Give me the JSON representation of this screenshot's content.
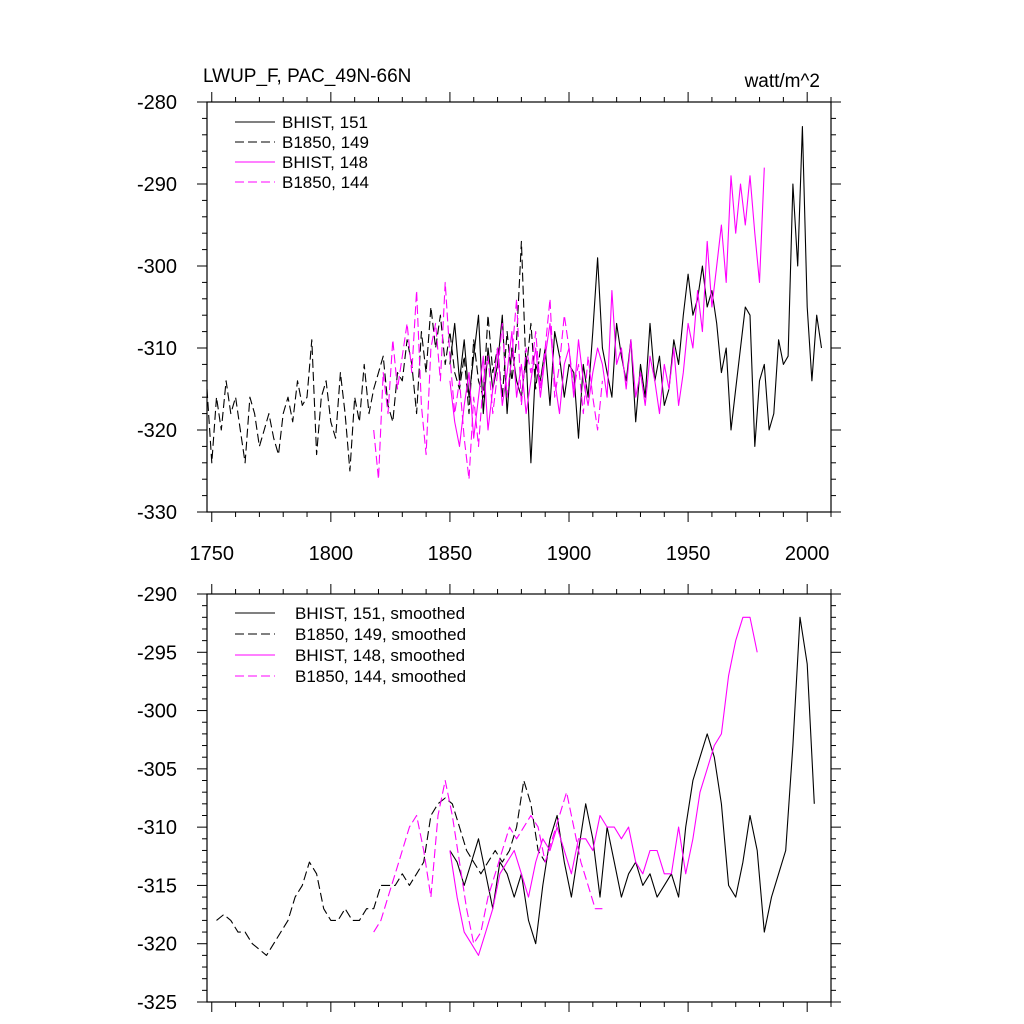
{
  "header": {
    "left_title": "LWUP_F, PAC_49N-66N",
    "right_title": "watt/m^2"
  },
  "colors": {
    "black": "#000000",
    "magenta": "#ff00ff"
  },
  "chart_data": [
    {
      "type": "line",
      "title": "LWUP_F, PAC_49N-66N",
      "units": "watt/m^2",
      "xlim": [
        1748,
        2010
      ],
      "ylim": [
        -330,
        -280
      ],
      "x_ticks": [
        1750,
        1800,
        1850,
        1900,
        1950,
        2000
      ],
      "y_ticks": [
        -330,
        -320,
        -310,
        -300,
        -290,
        -280
      ],
      "grid": false,
      "legend_position": "top-left",
      "series": [
        {
          "name": "BHIST, 151",
          "color": "#000000",
          "dash": "solid",
          "x": [
            1850,
            1852,
            1854,
            1856,
            1858,
            1860,
            1862,
            1864,
            1866,
            1868,
            1870,
            1872,
            1874,
            1876,
            1878,
            1880,
            1882,
            1884,
            1886,
            1888,
            1890,
            1892,
            1894,
            1896,
            1898,
            1900,
            1902,
            1904,
            1906,
            1908,
            1910,
            1912,
            1914,
            1916,
            1918,
            1920,
            1922,
            1924,
            1926,
            1928,
            1930,
            1932,
            1934,
            1936,
            1938,
            1940,
            1942,
            1944,
            1946,
            1948,
            1950,
            1952,
            1954,
            1956,
            1958,
            1960,
            1962,
            1964,
            1966,
            1968,
            1970,
            1972,
            1974,
            1976,
            1978,
            1980,
            1982,
            1984,
            1986,
            1988,
            1990,
            1992,
            1994,
            1996,
            1998,
            2000,
            2002,
            2004,
            2006
          ],
          "y": [
            -312,
            -307,
            -314,
            -309,
            -316,
            -311,
            -306,
            -318,
            -310,
            -315,
            -312,
            -306,
            -318,
            -310,
            -314,
            -316,
            -311,
            -324,
            -312,
            -314,
            -310,
            -317,
            -308,
            -311,
            -316,
            -312,
            -313,
            -321,
            -312,
            -316,
            -308,
            -299,
            -310,
            -313,
            -316,
            -307,
            -311,
            -314,
            -309,
            -319,
            -312,
            -316,
            -307,
            -314,
            -311,
            -317,
            -315,
            -309,
            -312,
            -306,
            -301,
            -306,
            -304,
            -300,
            -305,
            -303,
            -307,
            -313,
            -310,
            -320,
            -315,
            -310,
            -305,
            -306,
            -322,
            -314,
            -312,
            -320,
            -318,
            -309,
            -312,
            -311,
            -290,
            -300,
            -283,
            -305,
            -314,
            -306,
            -310
          ]
        },
        {
          "name": "B1850, 149",
          "color": "#000000",
          "dash": "dashed",
          "x": [
            1748,
            1750,
            1752,
            1754,
            1756,
            1758,
            1760,
            1762,
            1764,
            1766,
            1768,
            1770,
            1772,
            1774,
            1776,
            1778,
            1780,
            1782,
            1784,
            1786,
            1788,
            1790,
            1792,
            1794,
            1796,
            1798,
            1800,
            1802,
            1804,
            1806,
            1808,
            1810,
            1812,
            1814,
            1816,
            1818,
            1820,
            1822,
            1824,
            1826,
            1828,
            1830,
            1832,
            1834,
            1836,
            1838,
            1840,
            1842,
            1844,
            1846,
            1848,
            1850,
            1852,
            1854,
            1856,
            1858,
            1860,
            1862,
            1864,
            1866,
            1868,
            1870,
            1872,
            1874,
            1876,
            1878,
            1880,
            1882,
            1884,
            1886,
            1888
          ],
          "y": [
            -315,
            -324,
            -316,
            -320,
            -314,
            -318,
            -316,
            -320,
            -324,
            -316,
            -318,
            -322,
            -320,
            -318,
            -321,
            -323,
            -318,
            -316,
            -319,
            -314,
            -317,
            -316,
            -309,
            -323,
            -316,
            -314,
            -319,
            -321,
            -313,
            -318,
            -325,
            -316,
            -319,
            -312,
            -318,
            -315,
            -313,
            -311,
            -317,
            -319,
            -313,
            -314,
            -309,
            -312,
            -318,
            -308,
            -313,
            -305,
            -310,
            -306,
            -312,
            -308,
            -313,
            -315,
            -311,
            -318,
            -309,
            -314,
            -316,
            -306,
            -313,
            -310,
            -316,
            -308,
            -314,
            -309,
            -297,
            -313,
            -307,
            -315,
            -310
          ]
        },
        {
          "name": "BHIST, 148",
          "color": "#ff00ff",
          "dash": "solid",
          "x": [
            1850,
            1852,
            1854,
            1856,
            1858,
            1860,
            1862,
            1864,
            1866,
            1868,
            1870,
            1872,
            1874,
            1876,
            1878,
            1880,
            1882,
            1884,
            1886,
            1888,
            1890,
            1892,
            1894,
            1896,
            1898,
            1900,
            1902,
            1904,
            1906,
            1908,
            1910,
            1912,
            1914,
            1916,
            1918,
            1920,
            1922,
            1924,
            1926,
            1928,
            1930,
            1932,
            1934,
            1936,
            1938,
            1940,
            1942,
            1944,
            1946,
            1948,
            1950,
            1952,
            1954,
            1956,
            1958,
            1960,
            1962,
            1964,
            1966,
            1968,
            1970,
            1972,
            1974,
            1976,
            1978,
            1980,
            1982
          ],
          "y": [
            -314,
            -319,
            -322,
            -317,
            -313,
            -321,
            -316,
            -311,
            -320,
            -315,
            -310,
            -317,
            -313,
            -308,
            -316,
            -312,
            -318,
            -314,
            -310,
            -316,
            -311,
            -307,
            -314,
            -318,
            -312,
            -310,
            -316,
            -309,
            -314,
            -317,
            -313,
            -310,
            -312,
            -316,
            -303,
            -312,
            -310,
            -315,
            -309,
            -316,
            -313,
            -317,
            -311,
            -314,
            -318,
            -312,
            -315,
            -310,
            -317,
            -313,
            -307,
            -310,
            -303,
            -308,
            -297,
            -305,
            -300,
            -295,
            -302,
            -289,
            -296,
            -290,
            -295,
            -289,
            -296,
            -302,
            -288
          ]
        },
        {
          "name": "B1850, 144",
          "color": "#ff00ff",
          "dash": "dashed",
          "x": [
            1818,
            1820,
            1822,
            1824,
            1826,
            1828,
            1830,
            1832,
            1834,
            1836,
            1838,
            1840,
            1842,
            1844,
            1846,
            1848,
            1850,
            1852,
            1854,
            1856,
            1858,
            1860,
            1862,
            1864,
            1866,
            1868,
            1870,
            1872,
            1874,
            1876,
            1878,
            1880,
            1882,
            1884,
            1886,
            1888,
            1890,
            1892,
            1894,
            1896,
            1898,
            1900,
            1902,
            1904,
            1906,
            1908,
            1910,
            1912,
            1914
          ],
          "y": [
            -320,
            -326,
            -313,
            -318,
            -309,
            -315,
            -311,
            -307,
            -313,
            -303,
            -317,
            -323,
            -310,
            -307,
            -314,
            -302,
            -311,
            -318,
            -314,
            -321,
            -326,
            -316,
            -322,
            -314,
            -311,
            -318,
            -313,
            -307,
            -316,
            -311,
            -304,
            -317,
            -310,
            -313,
            -308,
            -315,
            -310,
            -304,
            -316,
            -312,
            -306,
            -310,
            -315,
            -312,
            -318,
            -311,
            -316,
            -320,
            -314
          ]
        }
      ]
    },
    {
      "type": "line",
      "xlim": [
        1748,
        2010
      ],
      "ylim": [
        -325,
        -290
      ],
      "x_ticks": [
        1750,
        1800,
        1850,
        1900,
        1950,
        2000
      ],
      "y_ticks": [
        -325,
        -320,
        -315,
        -310,
        -305,
        -300,
        -295,
        -290
      ],
      "grid": false,
      "legend_position": "top-left",
      "series": [
        {
          "name": "BHIST, 151, smoothed",
          "color": "#000000",
          "dash": "solid",
          "x": [
            1850,
            1853,
            1856,
            1859,
            1862,
            1865,
            1868,
            1871,
            1874,
            1877,
            1880,
            1883,
            1886,
            1889,
            1892,
            1895,
            1898,
            1901,
            1904,
            1907,
            1910,
            1913,
            1916,
            1919,
            1922,
            1925,
            1928,
            1931,
            1934,
            1937,
            1940,
            1943,
            1946,
            1949,
            1952,
            1955,
            1958,
            1961,
            1964,
            1967,
            1970,
            1973,
            1976,
            1979,
            1982,
            1985,
            1988,
            1991,
            1994,
            1997,
            2000,
            2003
          ],
          "y": [
            -312,
            -313,
            -315,
            -313,
            -311,
            -314,
            -317,
            -313,
            -314,
            -316,
            -314,
            -318,
            -320,
            -315,
            -311,
            -309,
            -313,
            -316,
            -312,
            -308,
            -311,
            -316,
            -310,
            -313,
            -316,
            -314,
            -313,
            -315,
            -314,
            -316,
            -315,
            -314,
            -316,
            -310,
            -306,
            -304,
            -302,
            -304,
            -308,
            -315,
            -316,
            -313,
            -309,
            -312,
            -319,
            -316,
            -314,
            -312,
            -303,
            -292,
            -296,
            -308
          ]
        },
        {
          "name": "B1850, 149, smoothed",
          "color": "#000000",
          "dash": "dashed",
          "x": [
            1752,
            1755,
            1758,
            1761,
            1764,
            1767,
            1770,
            1773,
            1776,
            1779,
            1782,
            1785,
            1788,
            1791,
            1794,
            1797,
            1800,
            1803,
            1806,
            1809,
            1812,
            1815,
            1818,
            1821,
            1824,
            1827,
            1830,
            1833,
            1836,
            1839,
            1842,
            1845,
            1848,
            1851,
            1854,
            1857,
            1860,
            1863,
            1866,
            1869,
            1872,
            1875,
            1878,
            1881,
            1884,
            1887,
            1890
          ],
          "y": [
            -318,
            -317.5,
            -318,
            -319,
            -319,
            -320,
            -320.5,
            -321,
            -320,
            -319,
            -318,
            -316,
            -315,
            -313,
            -314,
            -317,
            -318,
            -318,
            -317,
            -318,
            -318,
            -317,
            -317,
            -315,
            -315,
            -315,
            -314,
            -315,
            -314,
            -313,
            -309,
            -308,
            -307.5,
            -308,
            -310,
            -312,
            -313,
            -314,
            -313,
            -312,
            -313,
            -312,
            -310,
            -306,
            -308,
            -312,
            -313
          ]
        },
        {
          "name": "BHIST, 148, smoothed",
          "color": "#ff00ff",
          "dash": "solid",
          "x": [
            1850,
            1853,
            1856,
            1859,
            1862,
            1865,
            1868,
            1871,
            1874,
            1877,
            1880,
            1883,
            1886,
            1889,
            1892,
            1895,
            1898,
            1901,
            1904,
            1907,
            1910,
            1913,
            1916,
            1919,
            1922,
            1925,
            1928,
            1931,
            1934,
            1937,
            1940,
            1943,
            1946,
            1949,
            1952,
            1955,
            1958,
            1961,
            1964,
            1967,
            1970,
            1973,
            1976,
            1979
          ],
          "y": [
            -312,
            -316,
            -319,
            -320,
            -321,
            -319,
            -317,
            -314,
            -313,
            -312,
            -314,
            -316,
            -313,
            -311,
            -312,
            -310,
            -312,
            -314,
            -311,
            -311,
            -312,
            -309,
            -310,
            -310,
            -311,
            -310,
            -313,
            -314,
            -312,
            -312,
            -314,
            -314,
            -310,
            -314,
            -311,
            -307,
            -305,
            -303,
            -302,
            -297,
            -294,
            -292,
            -292,
            -295
          ]
        },
        {
          "name": "B1850, 144, smoothed",
          "color": "#ff00ff",
          "dash": "dashed",
          "x": [
            1818,
            1821,
            1824,
            1827,
            1830,
            1833,
            1836,
            1839,
            1842,
            1845,
            1848,
            1851,
            1854,
            1857,
            1860,
            1863,
            1866,
            1869,
            1872,
            1875,
            1878,
            1881,
            1884,
            1887,
            1890,
            1893,
            1896,
            1899,
            1902,
            1905,
            1908,
            1911,
            1914
          ],
          "y": [
            -319,
            -318,
            -316,
            -314,
            -312,
            -310,
            -309,
            -312,
            -316,
            -309,
            -306,
            -309,
            -313,
            -317,
            -320,
            -319,
            -316,
            -314,
            -312,
            -310,
            -311,
            -310,
            -309,
            -310,
            -313,
            -311,
            -309,
            -307,
            -310,
            -313,
            -315,
            -317,
            -317
          ]
        }
      ]
    }
  ]
}
